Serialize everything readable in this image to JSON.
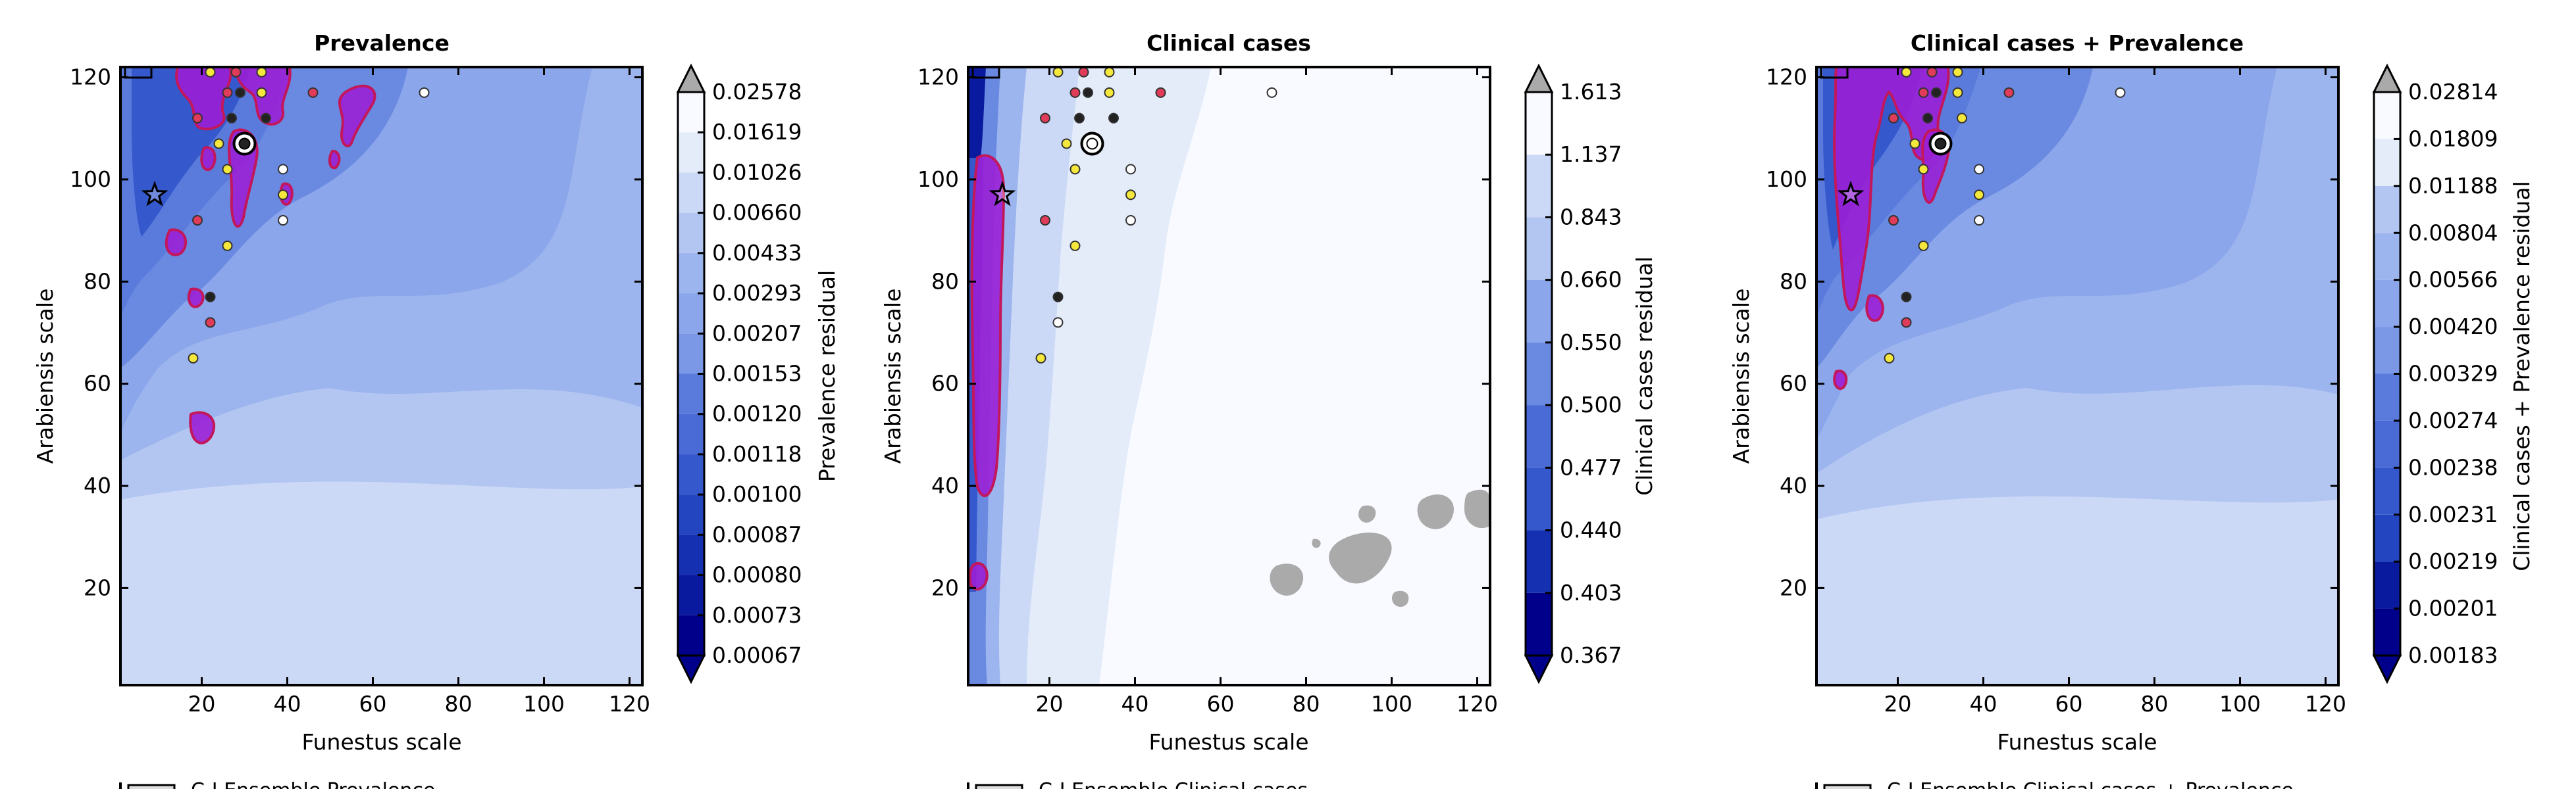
{
  "chart_data": [
    {
      "type": "heatmap",
      "title": "Prevalence",
      "xlabel": "Funestus scale",
      "ylabel": "Arabiensis scale",
      "xlim": [
        1,
        123
      ],
      "ylim": [
        1,
        122
      ],
      "xticks": [
        20,
        40,
        60,
        80,
        100,
        120
      ],
      "yticks": [
        20,
        40,
        60,
        80,
        100,
        120
      ],
      "colorbar_label": "Prevalence residual",
      "colorbar_ticks": [
        "0.00067",
        "0.00073",
        "0.00080",
        "0.00087",
        "0.00100",
        "0.00118",
        "0.00120",
        "0.00153",
        "0.00207",
        "0.00293",
        "0.00433",
        "0.00660",
        "0.01026",
        "0.01619",
        "0.02578"
      ],
      "points": [
        {
          "x": 22,
          "y": 121,
          "fill": "#f5e83c"
        },
        {
          "x": 28,
          "y": 121,
          "fill": "#e03c5a"
        },
        {
          "x": 34,
          "y": 121,
          "fill": "#f5e83c"
        },
        {
          "x": 26,
          "y": 117,
          "fill": "#e03c5a"
        },
        {
          "x": 29,
          "y": 117,
          "fill": "#222222"
        },
        {
          "x": 34,
          "y": 117,
          "fill": "#f5e83c"
        },
        {
          "x": 46,
          "y": 117,
          "fill": "#e03c5a"
        },
        {
          "x": 72,
          "y": 117,
          "fill": "#ffffff"
        },
        {
          "x": 19,
          "y": 112,
          "fill": "#e03c5a"
        },
        {
          "x": 27,
          "y": 112,
          "fill": "#222222"
        },
        {
          "x": 35,
          "y": 112,
          "fill": "#222222"
        },
        {
          "x": 24,
          "y": 107,
          "fill": "#f5e83c"
        },
        {
          "x": 30,
          "y": 107,
          "fill": "#222222",
          "marker": "target"
        },
        {
          "x": 26,
          "y": 102,
          "fill": "#f5e83c"
        },
        {
          "x": 39,
          "y": 102,
          "fill": "#ffffff"
        },
        {
          "x": 9,
          "y": 97,
          "fill": "#ffffff",
          "marker": "star"
        },
        {
          "x": 39,
          "y": 97,
          "fill": "#f5e83c"
        },
        {
          "x": 19,
          "y": 92,
          "fill": "#e03c5a"
        },
        {
          "x": 39,
          "y": 92,
          "fill": "#ffffff"
        },
        {
          "x": 26,
          "y": 87,
          "fill": "#f5e83c"
        },
        {
          "x": 22,
          "y": 77,
          "fill": "#222222"
        },
        {
          "x": 22,
          "y": 72,
          "fill": "#e03c5a"
        },
        {
          "x": 18,
          "y": 65,
          "fill": "#f5e83c"
        }
      ],
      "legend_entry": "C-I Ensemble Prevalence"
    },
    {
      "type": "heatmap",
      "title": "Clinical cases",
      "xlabel": "Funestus scale",
      "ylabel": "Arabiensis scale",
      "xlim": [
        1,
        123
      ],
      "ylim": [
        1,
        122
      ],
      "xticks": [
        20,
        40,
        60,
        80,
        100,
        120
      ],
      "yticks": [
        20,
        40,
        60,
        80,
        100,
        120
      ],
      "colorbar_label": "Clinical cases residual",
      "colorbar_ticks": [
        "0.367",
        "0.403",
        "0.440",
        "0.477",
        "0.500",
        "0.550",
        "0.660",
        "0.843",
        "1.137",
        "1.613"
      ],
      "points": [
        {
          "x": 22,
          "y": 121,
          "fill": "#f5e83c"
        },
        {
          "x": 28,
          "y": 121,
          "fill": "#e03c5a"
        },
        {
          "x": 34,
          "y": 121,
          "fill": "#f5e83c"
        },
        {
          "x": 26,
          "y": 117,
          "fill": "#e03c5a"
        },
        {
          "x": 29,
          "y": 117,
          "fill": "#222222"
        },
        {
          "x": 34,
          "y": 117,
          "fill": "#f5e83c"
        },
        {
          "x": 46,
          "y": 117,
          "fill": "#e03c5a"
        },
        {
          "x": 72,
          "y": 117,
          "fill": "#ffffff"
        },
        {
          "x": 19,
          "y": 112,
          "fill": "#e03c5a"
        },
        {
          "x": 27,
          "y": 112,
          "fill": "#222222"
        },
        {
          "x": 35,
          "y": 112,
          "fill": "#222222"
        },
        {
          "x": 24,
          "y": 107,
          "fill": "#f5e83c"
        },
        {
          "x": 30,
          "y": 107,
          "fill": "#ffffff",
          "marker": "target"
        },
        {
          "x": 26,
          "y": 102,
          "fill": "#f5e83c"
        },
        {
          "x": 39,
          "y": 102,
          "fill": "#ffffff"
        },
        {
          "x": 9,
          "y": 97,
          "fill": "#ffffff",
          "marker": "star"
        },
        {
          "x": 39,
          "y": 97,
          "fill": "#f5e83c"
        },
        {
          "x": 19,
          "y": 92,
          "fill": "#e03c5a"
        },
        {
          "x": 39,
          "y": 92,
          "fill": "#ffffff"
        },
        {
          "x": 26,
          "y": 87,
          "fill": "#f5e83c"
        },
        {
          "x": 22,
          "y": 77,
          "fill": "#222222"
        },
        {
          "x": 22,
          "y": 72,
          "fill": "#ffffff"
        },
        {
          "x": 18,
          "y": 65,
          "fill": "#f5e83c"
        }
      ],
      "legend_entry": "C-I Ensemble Clinical cases"
    },
    {
      "type": "heatmap",
      "title": "Clinical cases + Prevalence",
      "xlabel": "Funestus scale",
      "ylabel": "Arabiensis scale",
      "xlim": [
        1,
        123
      ],
      "ylim": [
        1,
        122
      ],
      "xticks": [
        20,
        40,
        60,
        80,
        100,
        120
      ],
      "yticks": [
        20,
        40,
        60,
        80,
        100,
        120
      ],
      "colorbar_label": "Clinical cases + Prevalence residual",
      "colorbar_ticks": [
        "0.00183",
        "0.00201",
        "0.00219",
        "0.00231",
        "0.00238",
        "0.00274",
        "0.00329",
        "0.00420",
        "0.00566",
        "0.00804",
        "0.01188",
        "0.01809",
        "0.02814"
      ],
      "points": [
        {
          "x": 22,
          "y": 121,
          "fill": "#f5e83c"
        },
        {
          "x": 28,
          "y": 121,
          "fill": "#e03c5a"
        },
        {
          "x": 34,
          "y": 121,
          "fill": "#f5e83c"
        },
        {
          "x": 26,
          "y": 117,
          "fill": "#e03c5a"
        },
        {
          "x": 29,
          "y": 117,
          "fill": "#222222"
        },
        {
          "x": 34,
          "y": 117,
          "fill": "#f5e83c"
        },
        {
          "x": 46,
          "y": 117,
          "fill": "#e03c5a"
        },
        {
          "x": 72,
          "y": 117,
          "fill": "#ffffff"
        },
        {
          "x": 19,
          "y": 112,
          "fill": "#e03c5a"
        },
        {
          "x": 27,
          "y": 112,
          "fill": "#222222"
        },
        {
          "x": 35,
          "y": 112,
          "fill": "#f5e83c"
        },
        {
          "x": 24,
          "y": 107,
          "fill": "#f5e83c"
        },
        {
          "x": 30,
          "y": 107,
          "fill": "#222222",
          "marker": "target"
        },
        {
          "x": 26,
          "y": 102,
          "fill": "#f5e83c"
        },
        {
          "x": 39,
          "y": 102,
          "fill": "#ffffff"
        },
        {
          "x": 9,
          "y": 97,
          "fill": "#ffffff",
          "marker": "star"
        },
        {
          "x": 39,
          "y": 97,
          "fill": "#f5e83c"
        },
        {
          "x": 19,
          "y": 92,
          "fill": "#e03c5a"
        },
        {
          "x": 39,
          "y": 92,
          "fill": "#ffffff"
        },
        {
          "x": 26,
          "y": 87,
          "fill": "#f5e83c"
        },
        {
          "x": 22,
          "y": 77,
          "fill": "#222222"
        },
        {
          "x": 22,
          "y": 72,
          "fill": "#e03c5a"
        },
        {
          "x": 18,
          "y": 65,
          "fill": "#f5e83c"
        }
      ],
      "legend_entry": "C-I Ensemble Clinical cases + Prevalence"
    }
  ],
  "colors": {
    "colormap": [
      "#00008b",
      "#0a1a9e",
      "#1530b0",
      "#2445c0",
      "#3558cc",
      "#4a6ad6",
      "#5b7bdc",
      "#6a8ae2",
      "#7a98e6",
      "#8ba6ea",
      "#9db5ee",
      "#b3c6f2",
      "#cbd9f6",
      "#e4ecfa",
      "#f8faff"
    ],
    "over": "#aaaaaa",
    "contour_fill": "#9a1fd6",
    "contour_line": "#c2185b"
  }
}
